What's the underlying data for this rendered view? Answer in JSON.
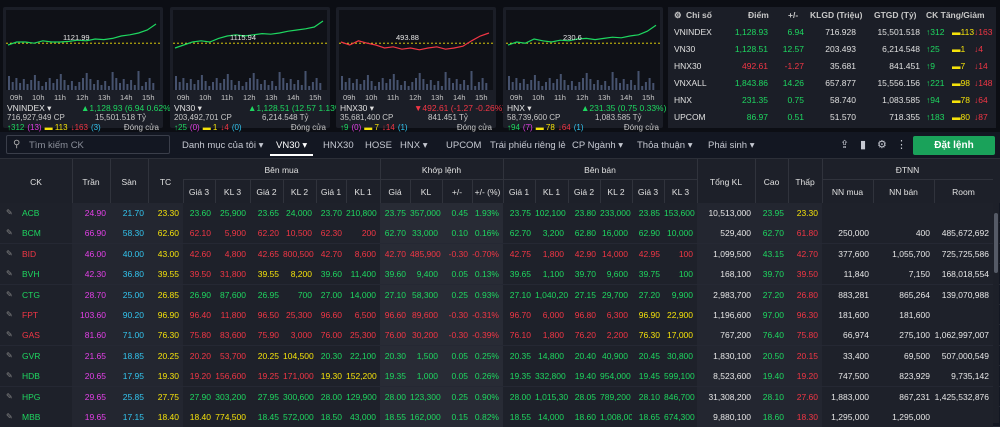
{
  "colors": {
    "up": "#1ed760",
    "down": "#f23645",
    "ref": "#f5e20a",
    "ceil": "#e440e8",
    "floor": "#33c4ee"
  },
  "charts": [
    {
      "name": "VNINDEX",
      "arrow": "up",
      "change": "▲1,128.93 (6.94 0.62%)",
      "vol": "716,927,949 CP",
      "value": "15,501.518 Tỷ",
      "up": "↑312",
      "ce": "(13)",
      "ref": "113",
      "down": "↓163",
      "fl": "(3)",
      "status": "Đóng cửa",
      "ref_label": "1121.99",
      "times": [
        "09h",
        "10h",
        "11h",
        "12h",
        "13h",
        "14h",
        "15h"
      ]
    },
    {
      "name": "VN30",
      "arrow": "up",
      "change": "▲1,128.51 (12.57 1.13%)",
      "vol": "203,492,701 CP",
      "value": "6,214.548 Tỷ",
      "up": "↑25",
      "ce": "(0)",
      "ref": "1",
      "down": "↓4",
      "fl": "(0)",
      "status": "Đóng cửa",
      "ref_label": "1115.94",
      "times": [
        "09h",
        "10h",
        "11h",
        "12h",
        "13h",
        "14h",
        "15h"
      ]
    },
    {
      "name": "HNX30",
      "arrow": "down",
      "change": "▼492.61 (-1.27 -0.26%)",
      "vol": "35,681,400 CP",
      "value": "841.451 Tỷ",
      "up": "↑9",
      "ce": "(0)",
      "ref": "7",
      "down": "↓14",
      "fl": "(1)",
      "status": "Đóng cửa",
      "ref_label": "493.88",
      "times": [
        "09h",
        "10h",
        "11h",
        "12h",
        "13h",
        "14h",
        "15h"
      ]
    },
    {
      "name": "HNX",
      "arrow": "up",
      "change": "▲231.35 (0.75 0.33%)",
      "vol": "58,739,600 CP",
      "value": "1,083.585 Tỷ",
      "up": "↑94",
      "ce": "(7)",
      "ref": "78",
      "down": "↓64",
      "fl": "(1)",
      "status": "Đóng cửa",
      "ref_label": "230.6",
      "times": [
        "09h",
        "10h",
        "11h",
        "12h",
        "13h",
        "14h",
        "15h"
      ]
    }
  ],
  "summary": {
    "headers": [
      "Chỉ số",
      "Điểm",
      "+/-",
      "KLGD (Triệu)",
      "GTGD (Tỷ)",
      "CK Tăng/Giảm"
    ],
    "rows": [
      {
        "name": "VNINDEX",
        "pt": "1,128.93",
        "chg": "6.94",
        "kl": "716.928",
        "gt": "15,501.518",
        "u": "↑312",
        "r": "113",
        "d": "↓163",
        "c": "up"
      },
      {
        "name": "VN30",
        "pt": "1,128.51",
        "chg": "12.57",
        "kl": "203.493",
        "gt": "6,214.548",
        "u": "↑25",
        "r": "1",
        "d": "↓4",
        "c": "up"
      },
      {
        "name": "HNX30",
        "pt": "492.61",
        "chg": "-1.27",
        "kl": "35.681",
        "gt": "841.451",
        "u": "↑9",
        "r": "7",
        "d": "↓14",
        "c": "dn"
      },
      {
        "name": "VNXALL",
        "pt": "1,843.86",
        "chg": "14.26",
        "kl": "657.877",
        "gt": "15,556.156",
        "u": "↑221",
        "r": "98",
        "d": "↓148",
        "c": "up"
      },
      {
        "name": "HNX",
        "pt": "231.35",
        "chg": "0.75",
        "kl": "58.740",
        "gt": "1,083.585",
        "u": "↑94",
        "r": "78",
        "d": "↓64",
        "c": "up"
      },
      {
        "name": "UPCOM",
        "pt": "86.97",
        "chg": "0.51",
        "kl": "51.570",
        "gt": "718.355",
        "u": "↑183",
        "r": "80",
        "d": "↓87",
        "c": "up"
      }
    ]
  },
  "toolbar": {
    "search_placeholder": "Tìm kiếm CK",
    "order_label": "Đặt lệnh",
    "tabs": [
      "Danh mục của tôi ▾",
      "VN30 ▾",
      "HNX30",
      "HOSE",
      "HNX ▾",
      "UPCOM",
      "Trái phiếu riêng lẻ",
      "CP Ngành ▾",
      "Thỏa thuận ▾",
      "Phái sinh ▾"
    ]
  },
  "table": {
    "groups": [
      "Bên mua",
      "Khớp lệnh",
      "Bên bán",
      "ĐTNN"
    ],
    "cols": [
      "CK",
      "Trần",
      "Sàn",
      "TC",
      "Giá 3",
      "KL 3",
      "Giá 2",
      "KL 2",
      "Giá 1",
      "KL 1",
      "Giá",
      "KL",
      "+/-",
      "+/- (%)",
      "Giá 1",
      "KL 1",
      "Giá 2",
      "KL 2",
      "Giá 3",
      "KL 3",
      "Tổng KL",
      "Cao",
      "Thấp",
      "NN mua",
      "NN bán",
      "Room"
    ],
    "rows": [
      [
        "ACB",
        "24.90",
        "21.70",
        "23.30",
        "23.60",
        "25,900",
        "23.65",
        "24,000",
        "23.70",
        "210,800",
        "23.75",
        "357,000",
        "0.45",
        "1.93%",
        "23.75",
        "102,100",
        "23.80",
        "233,000",
        "23.85",
        "153,600",
        "10,513,000",
        "23.95",
        "23.30",
        "",
        "",
        ""
      ],
      [
        "BCM",
        "66.90",
        "58.30",
        "62.60",
        "62.10",
        "5,900",
        "62.20",
        "10,500",
        "62.30",
        "200",
        "62.70",
        "33,000",
        "0.10",
        "0.16%",
        "62.70",
        "3,200",
        "62.80",
        "16,000",
        "62.90",
        "10,000",
        "529,400",
        "62.70",
        "61.80",
        "250,000",
        "400",
        "485,672,692"
      ],
      [
        "BID",
        "46.00",
        "40.00",
        "43.00",
        "42.60",
        "4,800",
        "42.65",
        "800,500",
        "42.70",
        "8,600",
        "42.70",
        "485,900",
        "-0.30",
        "-0.70%",
        "42.75",
        "1,800",
        "42.90",
        "14,000",
        "42.95",
        "100",
        "1,099,500",
        "43.15",
        "42.70",
        "377,600",
        "1,055,700",
        "725,725,586"
      ],
      [
        "BVH",
        "42.30",
        "36.80",
        "39.55",
        "39.50",
        "31,800",
        "39.55",
        "8,200",
        "39.60",
        "11,400",
        "39.60",
        "9,400",
        "0.05",
        "0.13%",
        "39.65",
        "1,100",
        "39.70",
        "9,600",
        "39.75",
        "100",
        "168,100",
        "39.70",
        "39.50",
        "11,840",
        "7,150",
        "168,018,554"
      ],
      [
        "CTG",
        "28.70",
        "25.00",
        "26.85",
        "26.90",
        "87,600",
        "26.95",
        "700",
        "27.00",
        "14,000",
        "27.10",
        "58,300",
        "0.25",
        "0.93%",
        "27.10",
        "1,040,200",
        "27.15",
        "29,700",
        "27.20",
        "9,900",
        "2,983,700",
        "27.20",
        "26.80",
        "883,281",
        "865,264",
        "139,070,988"
      ],
      [
        "FPT",
        "103.60",
        "90.20",
        "96.90",
        "96.40",
        "11,800",
        "96.50",
        "25,300",
        "96.60",
        "6,500",
        "96.60",
        "89,600",
        "-0.30",
        "-0.31%",
        "96.70",
        "6,000",
        "96.80",
        "6,300",
        "96.90",
        "22,900",
        "1,196,600",
        "97.00",
        "96.30",
        "181,600",
        "181,600",
        ""
      ],
      [
        "GAS",
        "81.60",
        "71.00",
        "76.30",
        "75.80",
        "83,600",
        "75.90",
        "3,000",
        "76.00",
        "25,300",
        "76.00",
        "30,200",
        "-0.30",
        "-0.39%",
        "76.10",
        "1,800",
        "76.20",
        "2,200",
        "76.30",
        "17,000",
        "767,200",
        "76.40",
        "75.80",
        "66,974",
        "275,100",
        "1,062,997,007"
      ],
      [
        "GVR",
        "21.65",
        "18.85",
        "20.25",
        "20.20",
        "53,700",
        "20.25",
        "104,500",
        "20.30",
        "22,100",
        "20.30",
        "1,500",
        "0.05",
        "0.25%",
        "20.35",
        "14,800",
        "20.40",
        "40,900",
        "20.45",
        "30,800",
        "1,830,100",
        "20.50",
        "20.15",
        "33,400",
        "69,500",
        "507,000,549"
      ],
      [
        "HDB",
        "20.65",
        "17.95",
        "19.30",
        "19.20",
        "156,600",
        "19.25",
        "171,000",
        "19.30",
        "152,200",
        "19.35",
        "1,000",
        "0.05",
        "0.26%",
        "19.35",
        "332,800",
        "19.40",
        "954,000",
        "19.45",
        "599,100",
        "8,523,600",
        "19.40",
        "19.20",
        "747,500",
        "823,929",
        "9,735,142"
      ],
      [
        "HPG",
        "29.65",
        "25.85",
        "27.75",
        "27.90",
        "303,200",
        "27.95",
        "300,600",
        "28.00",
        "129,900",
        "28.00",
        "123,300",
        "0.25",
        "0.90%",
        "28.00",
        "1,015,300",
        "28.05",
        "789,200",
        "28.10",
        "846,700",
        "31,308,200",
        "28.10",
        "27.60",
        "1,883,000",
        "867,231",
        "1,425,532,876"
      ],
      [
        "MBB",
        "19.65",
        "17.15",
        "18.40",
        "18.40",
        "774,500",
        "18.45",
        "572,000",
        "18.50",
        "43,000",
        "18.55",
        "162,000",
        "0.15",
        "0.82%",
        "18.55",
        "14,000",
        "18.60",
        "1,008,000",
        "18.65",
        "674,300",
        "9,880,100",
        "18.60",
        "18.30",
        "1,295,000",
        "1,295,000",
        ""
      ]
    ]
  }
}
